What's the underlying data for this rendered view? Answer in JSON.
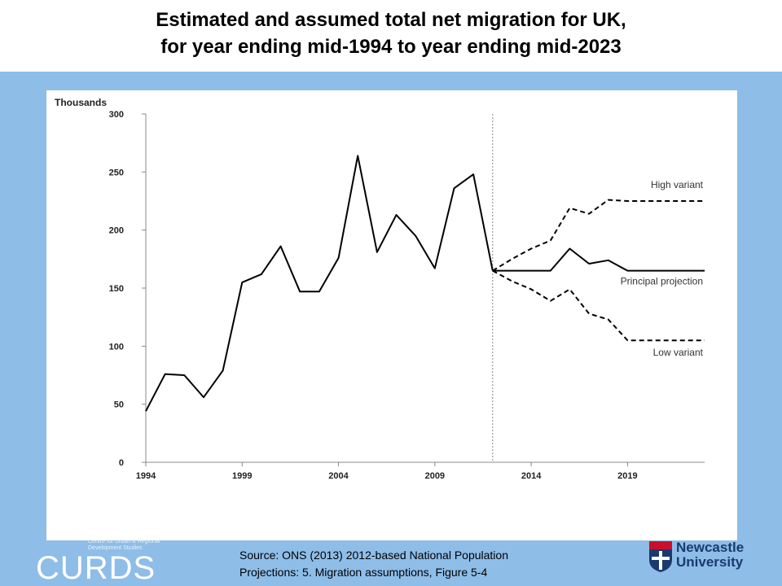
{
  "title_line1": "Estimated and assumed total net migration for UK,",
  "title_line2": "for year ending mid-1994 to year ending mid-2023",
  "source_line1": "Source: ONS (2013) 2012-based National Population",
  "source_line2": "Projections: 5. Migration assumptions, Figure 5-4",
  "logo_left": {
    "small_text": "Centre for Urban & Regional Development Studies",
    "name": "CURDS"
  },
  "logo_right": {
    "line1": "Newcastle",
    "line2": "University"
  },
  "chart_data": {
    "type": "line",
    "ylabel": "Thousands",
    "xlabel": "",
    "ylim": [
      0,
      300
    ],
    "xlim": [
      1994,
      2023
    ],
    "yticks": [
      0,
      50,
      100,
      150,
      200,
      250,
      300
    ],
    "xticks": [
      1994,
      1999,
      2004,
      2009,
      2014,
      2019
    ],
    "projection_start": 2012,
    "grid": false,
    "colors": {
      "line": "#000000",
      "axis": "#888888",
      "divider": "#888888",
      "annotation": "#333333"
    },
    "series": [
      {
        "name": "",
        "style": "solid",
        "x": [
          1994,
          1995,
          1996,
          1997,
          1998,
          1999,
          2000,
          2001,
          2002,
          2003,
          2004,
          2005,
          2006,
          2007,
          2008,
          2009,
          2010,
          2011,
          2012
        ],
        "y": [
          44,
          76,
          75,
          56,
          79,
          155,
          162,
          186,
          147,
          147,
          176,
          264,
          181,
          213,
          195,
          167,
          236,
          248,
          165
        ]
      },
      {
        "name": "High variant",
        "style": "dashed",
        "x": [
          2012,
          2013,
          2014,
          2015,
          2016,
          2017,
          2018,
          2019,
          2020,
          2021,
          2022,
          2023
        ],
        "y": [
          165,
          175,
          184,
          191,
          219,
          214,
          226,
          225,
          225,
          225,
          225,
          225
        ]
      },
      {
        "name": "Principal projection",
        "style": "solid",
        "x": [
          2012,
          2013,
          2014,
          2015,
          2016,
          2017,
          2018,
          2019,
          2020,
          2021,
          2022,
          2023
        ],
        "y": [
          165,
          165,
          165,
          165,
          184,
          171,
          174,
          165,
          165,
          165,
          165,
          165
        ]
      },
      {
        "name": "Low variant",
        "style": "dashed",
        "x": [
          2012,
          2013,
          2014,
          2015,
          2016,
          2017,
          2018,
          2019,
          2020,
          2021,
          2022,
          2023
        ],
        "y": [
          165,
          156,
          149,
          139,
          149,
          128,
          123,
          105,
          105,
          105,
          105,
          105
        ]
      }
    ]
  }
}
